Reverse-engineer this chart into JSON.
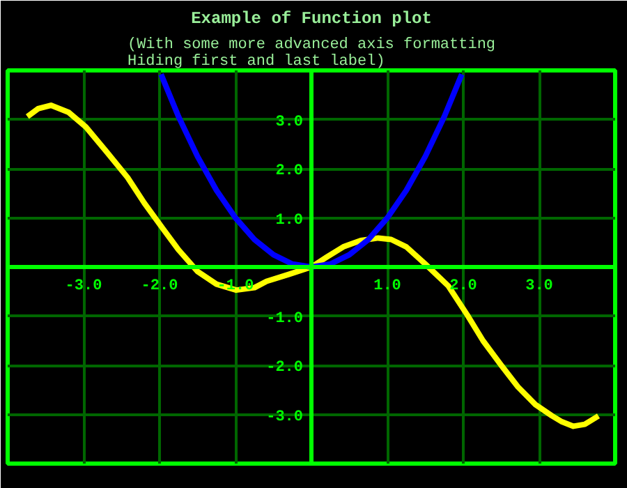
{
  "chart_data": {
    "type": "line",
    "title": "Example of Function plot",
    "subtitle": "(With some more advanced axis formatting\nHiding first and last label)",
    "xlim": [
      -4,
      4
    ],
    "ylim": [
      -4,
      4
    ],
    "xticks": [
      {
        "value": -4,
        "label": null
      },
      {
        "value": -3,
        "label": "-3.0"
      },
      {
        "value": -2,
        "label": "-2.0"
      },
      {
        "value": -1,
        "label": "-1.0"
      },
      {
        "value": 0,
        "label": null
      },
      {
        "value": 1,
        "label": "1.0"
      },
      {
        "value": 2,
        "label": "2.0"
      },
      {
        "value": 3,
        "label": "3.0"
      },
      {
        "value": 4,
        "label": null
      }
    ],
    "yticks": [
      {
        "value": -4,
        "label": null
      },
      {
        "value": -3,
        "label": "-3.0"
      },
      {
        "value": -2,
        "label": "-2.0"
      },
      {
        "value": -1,
        "label": "-1.0"
      },
      {
        "value": 0,
        "label": null
      },
      {
        "value": 1,
        "label": "1.0"
      },
      {
        "value": 2,
        "label": "2.0"
      },
      {
        "value": 3,
        "label": "3.0"
      },
      {
        "value": 4,
        "label": null
      }
    ],
    "grid": true,
    "line_style": "solid",
    "series": [
      {
        "color": "#ffff00",
        "x": [
          -3.74,
          -3.6,
          -3.43,
          -3.2,
          -2.97,
          -2.7,
          -2.42,
          -2.2,
          -1.96,
          -1.75,
          -1.5,
          -1.25,
          -0.99,
          -0.75,
          -0.59,
          -0.3,
          0,
          0.2,
          0.42,
          0.65,
          0.88,
          1.05,
          1.25,
          1.5,
          1.8,
          2.05,
          2.26,
          2.5,
          2.72,
          2.95,
          3.17,
          3.3,
          3.45,
          3.6,
          3.78
        ],
        "values": [
          3.06,
          3.22,
          3.29,
          3.15,
          2.85,
          2.35,
          1.82,
          1.3,
          0.79,
          0.35,
          -0.09,
          -0.35,
          -0.47,
          -0.42,
          -0.29,
          -0.15,
          0,
          0.2,
          0.41,
          0.54,
          0.59,
          0.56,
          0.41,
          0.06,
          -0.38,
          -0.97,
          -1.5,
          -2.0,
          -2.44,
          -2.8,
          -3.03,
          -3.15,
          -3.24,
          -3.2,
          -3.03
        ]
      },
      {
        "color": "#0000ff",
        "x": [
          -1.98,
          -1.75,
          -1.5,
          -1.25,
          -1.0,
          -0.75,
          -0.5,
          -0.25,
          0,
          0.25,
          0.5,
          0.75,
          1.0,
          1.25,
          1.5,
          1.75,
          1.98
        ],
        "values": [
          3.92,
          3.06,
          2.25,
          1.56,
          1.0,
          0.56,
          0.25,
          0.06,
          0,
          0.06,
          0.25,
          0.56,
          1.0,
          1.56,
          2.25,
          3.06,
          3.92
        ]
      }
    ]
  }
}
